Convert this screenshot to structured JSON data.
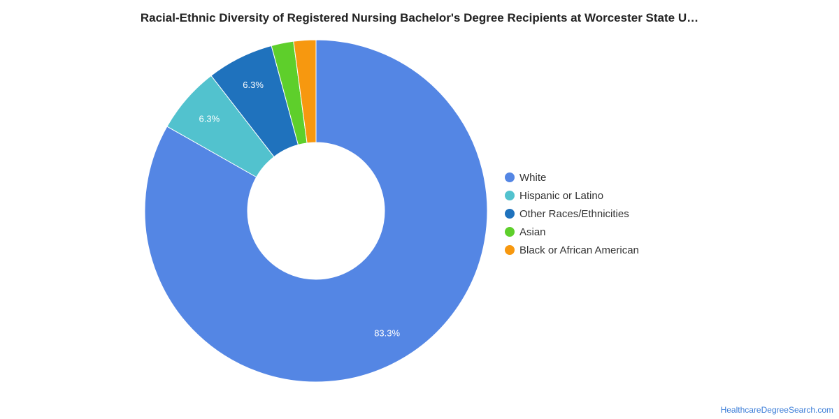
{
  "chart_data": {
    "type": "pie",
    "title": "Racial-Ethnic Diversity of Registered Nursing Bachelor's Degree Recipients at Worcester State U…",
    "donut": true,
    "start_angle_deg": 0,
    "categories": [
      "White",
      "Hispanic or Latino",
      "Other Races/Ethnicities",
      "Asian",
      "Black or African American"
    ],
    "values": [
      83.3,
      6.3,
      6.3,
      2.1,
      2.1
    ],
    "data_labels": [
      "83.3%",
      "6.3%",
      "6.3%",
      "",
      ""
    ],
    "colors": [
      "#5486e4",
      "#52c2ce",
      "#1f72bd",
      "#5ecf2b",
      "#f7980f"
    ],
    "legend_position": "right"
  },
  "credit": "HealthcareDegreeSearch.com"
}
